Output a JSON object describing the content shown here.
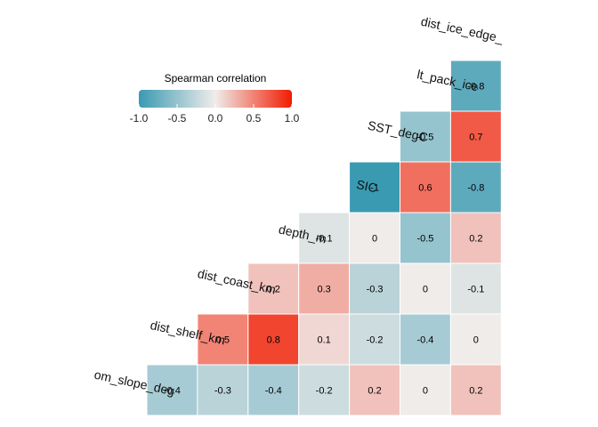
{
  "chart_data": {
    "type": "heatmap",
    "variables": [
      "bottom_slope_deg",
      "dist_shelf_km",
      "dist_coast_km",
      "depth_m",
      "SIC",
      "SST_degC",
      "lt_pack_ice",
      "dist_ice_edge_"
    ],
    "variable_labels": [
      "om_slope_deg",
      "dist_shelf_km",
      "dist_coast_km",
      "depth_m",
      "SIC",
      "SST_degC",
      "lt_pack_ice",
      "dist_ice_edge_"
    ],
    "cells": [
      {
        "row": "bottom_slope_deg",
        "col": "bottom_slope_deg",
        "value": -0.4,
        "label": "-0.4"
      },
      {
        "row": "bottom_slope_deg",
        "col": "dist_shelf_km",
        "value": -0.3,
        "label": "-0.3"
      },
      {
        "row": "bottom_slope_deg",
        "col": "dist_coast_km",
        "value": -0.4,
        "label": "-0.4"
      },
      {
        "row": "bottom_slope_deg",
        "col": "depth_m",
        "value": -0.2,
        "label": "-0.2"
      },
      {
        "row": "bottom_slope_deg",
        "col": "SIC",
        "value": 0.2,
        "label": "0.2"
      },
      {
        "row": "bottom_slope_deg",
        "col": "SST_degC",
        "value": 0,
        "label": "0"
      },
      {
        "row": "bottom_slope_deg",
        "col": "lt_pack_ice",
        "value": 0.2,
        "label": "0.2"
      },
      {
        "row": "dist_shelf_km",
        "col": "dist_shelf_km",
        "value": 0.5,
        "label": "0.5"
      },
      {
        "row": "dist_shelf_km",
        "col": "dist_coast_km",
        "value": 0.8,
        "label": "0.8"
      },
      {
        "row": "dist_shelf_km",
        "col": "depth_m",
        "value": 0.1,
        "label": "0.1"
      },
      {
        "row": "dist_shelf_km",
        "col": "SIC",
        "value": -0.2,
        "label": "-0.2"
      },
      {
        "row": "dist_shelf_km",
        "col": "SST_degC",
        "value": -0.4,
        "label": "-0.4"
      },
      {
        "row": "dist_shelf_km",
        "col": "lt_pack_ice",
        "value": 0,
        "label": "0"
      },
      {
        "row": "dist_coast_km",
        "col": "dist_coast_km",
        "value": 0.2,
        "label": "0.2"
      },
      {
        "row": "dist_coast_km",
        "col": "depth_m",
        "value": 0.3,
        "label": "0.3"
      },
      {
        "row": "dist_coast_km",
        "col": "SIC",
        "value": -0.3,
        "label": "-0.3"
      },
      {
        "row": "dist_coast_km",
        "col": "SST_degC",
        "value": 0,
        "label": "0"
      },
      {
        "row": "dist_coast_km",
        "col": "lt_pack_ice",
        "value": -0.1,
        "label": "-0.1"
      },
      {
        "row": "depth_m",
        "col": "depth_m",
        "value": -0.1,
        "label": "-0.1"
      },
      {
        "row": "depth_m",
        "col": "SIC",
        "value": 0,
        "label": "0"
      },
      {
        "row": "depth_m",
        "col": "SST_degC",
        "value": -0.5,
        "label": "-0.5"
      },
      {
        "row": "depth_m",
        "col": "lt_pack_ice",
        "value": 0.2,
        "label": "0.2"
      },
      {
        "row": "SIC",
        "col": "SIC",
        "value": -1,
        "label": "-1"
      },
      {
        "row": "SIC",
        "col": "SST_degC",
        "value": 0.6,
        "label": "0.6"
      },
      {
        "row": "SIC",
        "col": "lt_pack_ice",
        "value": -0.8,
        "label": "-0.8"
      },
      {
        "row": "SST_degC",
        "col": "SST_degC",
        "value": -0.5,
        "label": "-0.5"
      },
      {
        "row": "SST_degC",
        "col": "lt_pack_ice",
        "value": 0.7,
        "label": "0.7"
      },
      {
        "row": "lt_pack_ice",
        "col": "lt_pack_ice",
        "value": -0.8,
        "label": "-0.8"
      }
    ],
    "legend": {
      "title": "Spearman correlation",
      "range": [
        -1,
        1
      ],
      "ticks": [
        -1.0,
        -0.5,
        0.0,
        0.5,
        1.0
      ],
      "tick_labels": [
        "-1.0",
        "-0.5",
        "0.0",
        "0.5",
        "1.0"
      ],
      "colors": {
        "low": "#3A9AB2",
        "mid": "#F0ECEA",
        "high": "#F11B00"
      },
      "placement": "top-left"
    },
    "grid": false
  }
}
